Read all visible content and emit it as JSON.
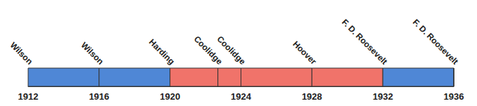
{
  "chart_data": {
    "type": "timeline",
    "categories": [
      "Wilson",
      "Wilson",
      "Harding",
      "Coolidge",
      "Coolidge",
      "Hoover",
      "F. D. Roosevelt",
      "F. D. Roosevelt"
    ],
    "x": [
      1912,
      1916,
      1920,
      1922.7,
      1924,
      1928,
      1932,
      1936
    ],
    "colors": [
      "#4f87d6",
      "#4f87d6",
      "#f0736a",
      "#f0736a",
      "#f0736a",
      "#f0736a",
      "#4f87d6",
      "#4f87d6"
    ],
    "xlim": [
      1912,
      1936
    ],
    "xticks": [
      1912,
      1916,
      1920,
      1924,
      1928,
      1932,
      1936
    ],
    "tick_labels": "x",
    "grid": false
  }
}
